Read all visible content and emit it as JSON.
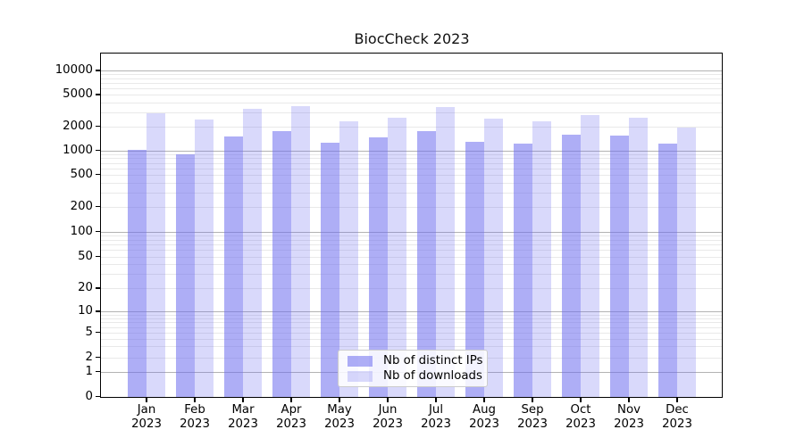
{
  "title": "BiocCheck 2023",
  "chart_data": {
    "type": "bar",
    "title": "BiocCheck 2023",
    "categories": [
      "Jan 2023",
      "Feb 2023",
      "Mar 2023",
      "Apr 2023",
      "May 2023",
      "Jun 2023",
      "Jul 2023",
      "Aug 2023",
      "Sep 2023",
      "Oct 2023",
      "Nov 2023",
      "Dec 2023"
    ],
    "x_tick_month": [
      "Jan",
      "Feb",
      "Mar",
      "Apr",
      "May",
      "Jun",
      "Jul",
      "Aug",
      "Sep",
      "Oct",
      "Nov",
      "Dec"
    ],
    "x_tick_year": "2023",
    "series": [
      {
        "name": "Nb of distinct IPs",
        "color": "#adadf5",
        "values": [
          1030,
          900,
          1510,
          1760,
          1250,
          1450,
          1730,
          1290,
          1210,
          1560,
          1520,
          1220
        ]
      },
      {
        "name": "Nb of downloads",
        "color": "#d8d8fa",
        "values": [
          2940,
          2420,
          3320,
          3580,
          2330,
          2570,
          3490,
          2480,
          2320,
          2750,
          2590,
          1950
        ]
      }
    ],
    "yscale": "log-like with zero baseline",
    "ytick_values": [
      10000,
      5000,
      2000,
      1000,
      500,
      200,
      100,
      50,
      20,
      10,
      5,
      2,
      1,
      0
    ],
    "ytick_labels": [
      "10000",
      "5000",
      "2000",
      "1000",
      "500",
      "200",
      "100",
      "50",
      "20",
      "10",
      "5",
      "2",
      "1",
      "0"
    ],
    "ylim": [
      0,
      16000
    ],
    "xlabel": "",
    "ylabel": "",
    "grid": "on",
    "legend_position": "bottom-center"
  },
  "legend": {
    "items": [
      {
        "label": "Nb of distinct IPs",
        "swatch_color": "#adadf5"
      },
      {
        "label": "Nb of downloads",
        "swatch_color": "#d8d8fa"
      }
    ]
  },
  "colors": {
    "bar_base": "#6b6bee",
    "major_gridline": "#b3b3b3",
    "minor_gridline": "#e9e9e9",
    "axis": "#000000",
    "background": "#ffffff"
  }
}
